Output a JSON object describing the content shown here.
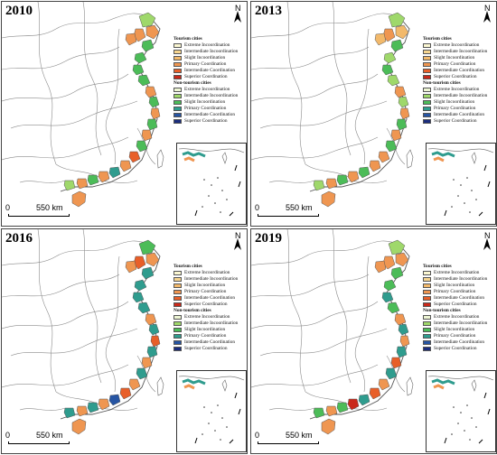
{
  "panels": [
    {
      "year": "2010"
    },
    {
      "year": "2013"
    },
    {
      "year": "2016"
    },
    {
      "year": "2019"
    }
  ],
  "north_label": "N",
  "scale": {
    "zero": "0",
    "distance": "550 km"
  },
  "legend": {
    "tourism_title": "Tourism cities",
    "tourism_items": [
      {
        "label": "Extreme Incoordination",
        "color": "#fbf7d2"
      },
      {
        "label": "Intermediate Incoordination",
        "color": "#f6d58f"
      },
      {
        "label": "Slight Incoordination",
        "color": "#f2b96b"
      },
      {
        "label": "Primary Coordination",
        "color": "#ef9651"
      },
      {
        "label": "Intermediate Coordination",
        "color": "#e85f29"
      },
      {
        "label": "Superior Coordination",
        "color": "#c9281a"
      }
    ],
    "nontourism_title": "Non-tourism cities",
    "nontourism_items": [
      {
        "label": "Extreme Incoordination",
        "color": "#eef6d4"
      },
      {
        "label": "Intermediate Incoordination",
        "color": "#9fd86b"
      },
      {
        "label": "Slight Incoordination",
        "color": "#4cbc58"
      },
      {
        "label": "Primary Coordination",
        "color": "#2f9c8e"
      },
      {
        "label": "Intermediate Coordination",
        "color": "#2755a3"
      },
      {
        "label": "Superior Coordination",
        "color": "#1b2d7e"
      }
    ]
  }
}
